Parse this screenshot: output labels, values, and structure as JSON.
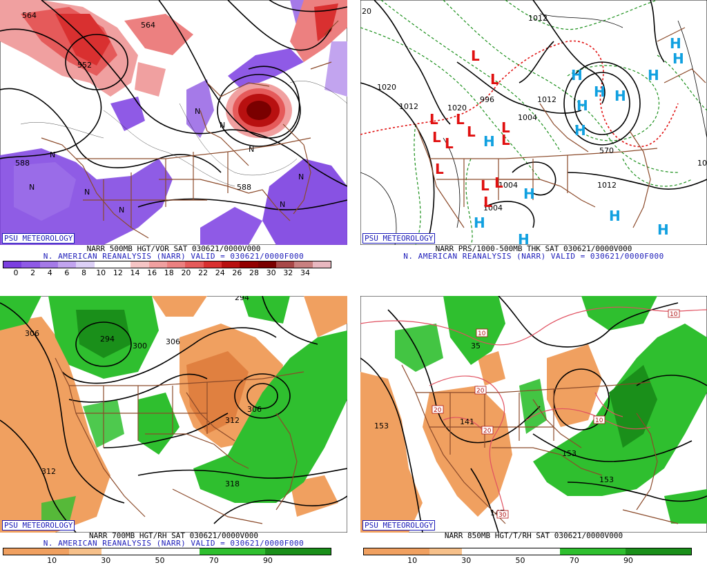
{
  "badge_text": "PSU METEOROLOGY",
  "panels": {
    "vorticity": {
      "caption1": "NARR 500MB HGT/VOR SAT 030621/0000V000",
      "caption2": "N. AMERICAN REANALYSIS (NARR) VALID = 030621/0000F000",
      "legend": [
        "0",
        "2",
        "4",
        "6",
        "8",
        "10",
        "12",
        "14",
        "16",
        "18",
        "20",
        "22",
        "24",
        "26",
        "28",
        "30",
        "32",
        "34"
      ],
      "legend_colors": [
        "#7b3fe0",
        "#8f5ae6",
        "#a57ae8",
        "#c2a4ef",
        "#dcd0f6",
        "#ffffff",
        "#ffffff",
        "#f6c5c5",
        "#f0a0a0",
        "#ec8080",
        "#e55a5a",
        "#d93030",
        "#b81010",
        "#930000",
        "#7a0000",
        "#a84848",
        "#c88080",
        "#e8b8c0"
      ],
      "contour_labels": [
        "564",
        "588",
        "588",
        "552",
        "564"
      ]
    },
    "pressure": {
      "caption1": "NARR PRS/1000-500MB THK SAT 030621/0000V000",
      "caption2": "N. AMERICAN REANALYSIS (NARR) VALID = 030621/0000F000",
      "contour_labels": [
        "1012",
        "1020",
        "1012",
        "1020",
        "996",
        "1012",
        "1004",
        "1012",
        "1004",
        "1004",
        "570",
        "20",
        "10"
      ],
      "low_label": "L",
      "high_label": "H"
    },
    "rh700": {
      "caption1": "NARR 700MB HGT/RH SAT 030621/0000V000",
      "caption2": "N. AMERICAN REANALYSIS (NARR) VALID = 030621/0000F000",
      "legend": [
        "10",
        "30",
        "50",
        "70",
        "90"
      ],
      "contour_labels": [
        "306",
        "294",
        "300",
        "306",
        "294",
        "312",
        "306",
        "312",
        "318"
      ]
    },
    "t850": {
      "caption1": "NARR 850MB HGT/T/RH SAT 030621/0000V000",
      "legend": [
        "10",
        "30",
        "50",
        "70",
        "90"
      ],
      "contour_labels": [
        "153",
        "141",
        "153",
        "153",
        "147"
      ],
      "temp_labels": [
        "10",
        "10",
        "20",
        "20",
        "20",
        "10",
        "30"
      ]
    }
  },
  "colors": {
    "rh_dry": "#f0a060",
    "rh_moist": "#2fbf2f",
    "rh_very_moist": "#1a8f1a",
    "map_lines": "#8b4a2a",
    "low": "#e01010",
    "high": "#10a0e0",
    "caption_blue": "#1a1ab8"
  }
}
